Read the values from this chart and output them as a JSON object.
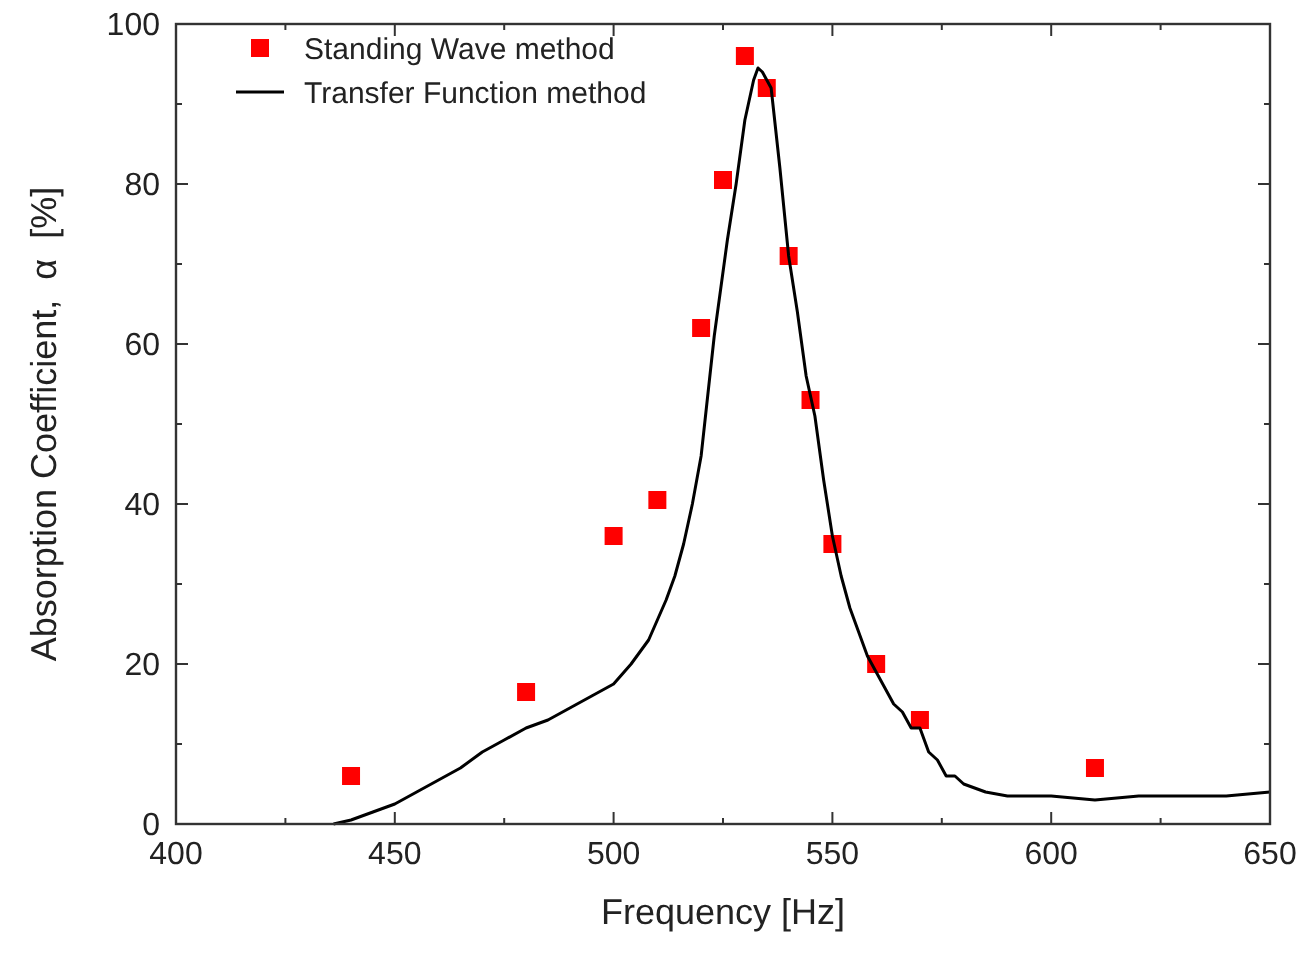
{
  "chart_data": {
    "type": "scatter",
    "xlabel": "Frequency [Hz]",
    "ylabel": "Absorption Coefficient,  α  [%]",
    "xlim": [
      400,
      650
    ],
    "xticks": [
      400,
      450,
      500,
      550,
      600,
      650
    ],
    "ylim": [
      0,
      100
    ],
    "yticks": [
      0,
      20,
      40,
      60,
      80,
      100
    ],
    "grid": false,
    "legend": "top left",
    "series": [
      {
        "name": "Standing Wave method",
        "marker": "square",
        "color": "#ff0000",
        "x": [
          440,
          480,
          500,
          510,
          520,
          525,
          530,
          535,
          540,
          545,
          550,
          560,
          570,
          610
        ],
        "values": [
          6,
          16.5,
          36,
          40.5,
          62,
          80.5,
          96,
          92,
          71,
          53,
          35,
          20,
          13,
          7
        ]
      },
      {
        "name": "Transfer Function method",
        "type": "line",
        "marker": "none",
        "line_style": "solid",
        "color": "#000000",
        "x": [
          436,
          440,
          445,
          450,
          455,
          460,
          465,
          470,
          475,
          480,
          485,
          490,
          495,
          500,
          504,
          508,
          510,
          512,
          514,
          516,
          518,
          520,
          523,
          526,
          528,
          530,
          532,
          533,
          534,
          536,
          538,
          540,
          542,
          544,
          546,
          548,
          550,
          552,
          554,
          556,
          558,
          560,
          562,
          564,
          566,
          568,
          570,
          572,
          574,
          576,
          578,
          580,
          585,
          590,
          600,
          610,
          620,
          630,
          640,
          650
        ],
        "values": [
          0,
          0.5,
          1.5,
          2.5,
          4,
          5.5,
          7,
          9,
          10.5,
          12,
          13,
          14.5,
          16,
          17.5,
          20,
          23,
          25.5,
          28,
          31,
          35,
          40,
          46,
          61,
          73,
          80,
          88,
          93,
          94.5,
          94,
          92,
          82,
          71,
          64,
          56,
          51,
          43,
          36,
          31,
          27,
          24,
          21,
          19,
          17,
          15,
          14,
          12,
          12,
          9,
          8,
          6,
          6,
          5,
          4,
          3.5,
          3.5,
          3,
          3.5,
          3.5,
          3.5,
          4
        ]
      }
    ]
  }
}
